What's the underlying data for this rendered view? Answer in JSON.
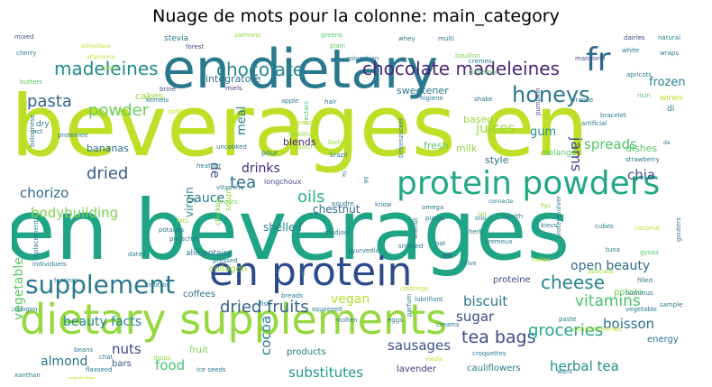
{
  "chart_data": {
    "type": "wordcloud",
    "title": "Nuage de mots pour la colonne: main_category",
    "words": [
      {
        "text": "beverages en",
        "weight": 100,
        "color": "#bddf26"
      },
      {
        "text": "en beverages",
        "weight": 96,
        "color": "#20a486"
      },
      {
        "text": "en dietary",
        "weight": 62,
        "color": "#2a788e"
      },
      {
        "text": "dietary supplements",
        "weight": 50,
        "color": "#95d840"
      },
      {
        "text": "en protein",
        "weight": 44,
        "color": "#2c4a8c"
      },
      {
        "text": "protein powders",
        "weight": 36,
        "color": "#22a884"
      },
      {
        "text": "fr",
        "weight": 33,
        "color": "#2f6b8e"
      },
      {
        "text": "supplement",
        "weight": 25,
        "color": "#29788e"
      },
      {
        "text": "honeys",
        "weight": 23,
        "color": "#2a778e"
      },
      {
        "text": "chocolate madeleines",
        "weight": 20,
        "color": "#482878"
      },
      {
        "text": "madeleines",
        "weight": 19,
        "color": "#238a8d"
      },
      {
        "text": "chocolate",
        "weight": 18,
        "color": "#24868e"
      },
      {
        "text": "pasta",
        "weight": 17,
        "color": "#33638d"
      },
      {
        "text": "powder",
        "weight": 17,
        "color": "#6ccd5a"
      },
      {
        "text": "dried fruits",
        "weight": 17,
        "color": "#34618d"
      },
      {
        "text": "cheese",
        "weight": 18,
        "color": "#26828e"
      },
      {
        "text": "tea bags",
        "weight": 18,
        "color": "#3e4a89"
      },
      {
        "text": "groceries",
        "weight": 17,
        "color": "#22a884"
      },
      {
        "text": "vitamins",
        "weight": 17,
        "color": "#4ac16d"
      },
      {
        "text": "dried",
        "weight": 16,
        "color": "#38598c"
      },
      {
        "text": "chorizo",
        "weight": 15,
        "color": "#31688e"
      },
      {
        "text": "bodybuilding",
        "weight": 15,
        "color": "#7ad151"
      },
      {
        "text": "oils",
        "weight": 17,
        "color": "#2cb17e"
      },
      {
        "text": "tea",
        "weight": 17,
        "color": "#2f6c8e"
      },
      {
        "text": "jams",
        "weight": 15,
        "color": "#404688"
      },
      {
        "text": "juices",
        "weight": 15,
        "color": "#95d840"
      },
      {
        "text": "spreads",
        "weight": 14,
        "color": "#52c569"
      },
      {
        "text": "chia",
        "weight": 14,
        "color": "#3b528b"
      },
      {
        "text": "cocoa",
        "weight": 14,
        "color": "#287d8e"
      },
      {
        "text": "sausages",
        "weight": 14,
        "color": "#3a548c"
      },
      {
        "text": "substitutes",
        "weight": 14,
        "color": "#1f9a8a"
      },
      {
        "text": "herbal tea",
        "weight": 14,
        "color": "#21918c"
      },
      {
        "text": "biscuit",
        "weight": 14,
        "color": "#2a768e"
      },
      {
        "text": "boisson",
        "weight": 14,
        "color": "#2d718e"
      },
      {
        "text": "open beauty",
        "weight": 14,
        "color": "#2e6e8e"
      },
      {
        "text": "beauty facts",
        "weight": 13,
        "color": "#25858e"
      },
      {
        "text": "vegetable",
        "weight": 13,
        "color": "#5ec962"
      },
      {
        "text": "sauce",
        "weight": 13,
        "color": "#2a788e"
      },
      {
        "text": "drinks",
        "weight": 13,
        "color": "#472c7a"
      },
      {
        "text": "almond",
        "weight": 13,
        "color": "#2e6f8e"
      },
      {
        "text": "food",
        "weight": 14,
        "color": "#4ac16d"
      },
      {
        "text": "nuts",
        "weight": 14,
        "color": "#3e4989"
      },
      {
        "text": "sugar",
        "weight": 14,
        "color": "#3d4d8a"
      },
      {
        "text": "vegan",
        "weight": 13,
        "color": "#b5de2b"
      },
      {
        "text": "de",
        "weight": 14,
        "color": "#3b528b"
      },
      {
        "text": "meal",
        "weight": 13,
        "color": "#2a788e"
      },
      {
        "text": "gum",
        "weight": 12,
        "color": "#21918c"
      },
      {
        "text": "frozen",
        "weight": 12,
        "color": "#25848e"
      },
      {
        "text": "virgin",
        "weight": 12,
        "color": "#26828e"
      },
      {
        "text": "shelled",
        "weight": 12,
        "color": "#26828e"
      },
      {
        "text": "chestnut",
        "weight": 11,
        "color": "#31688e"
      },
      {
        "text": "blends",
        "weight": 11,
        "color": "#481f70"
      },
      {
        "text": "integratore",
        "weight": 11,
        "color": "#2d708e"
      },
      {
        "text": "sweetener",
        "weight": 11,
        "color": "#2c728e"
      },
      {
        "text": "bananas",
        "weight": 11,
        "color": "#2d708e"
      },
      {
        "text": "cakes",
        "weight": 11,
        "color": "#95d840"
      },
      {
        "text": "milk",
        "weight": 11,
        "color": "#95d840"
      },
      {
        "text": "fresh",
        "weight": 11,
        "color": "#5ec962"
      },
      {
        "text": "based",
        "weight": 11,
        "color": "#95d840"
      },
      {
        "text": "style",
        "weight": 11,
        "color": "#2d708e"
      },
      {
        "text": "dishes",
        "weight": 11,
        "color": "#52c569"
      },
      {
        "text": "proteine",
        "weight": 10,
        "color": "#3e4989"
      },
      {
        "text": "potato",
        "weight": 10,
        "color": "#6ccd5a"
      },
      {
        "text": "coffees",
        "weight": 10,
        "color": "#2d708e"
      },
      {
        "text": "collagen",
        "weight": 10,
        "color": "#95d840"
      },
      {
        "text": "energy",
        "weight": 10,
        "color": "#2c728e"
      },
      {
        "text": "products",
        "weight": 10,
        "color": "#2c728e"
      },
      {
        "text": "fruit",
        "weight": 10,
        "color": "#7ad151"
      },
      {
        "text": "bars",
        "weight": 10,
        "color": "#3b528b"
      },
      {
        "text": "lavender",
        "weight": 10,
        "color": "#463480"
      },
      {
        "text": "cauliflowers",
        "weight": 10,
        "color": "#2a788e"
      },
      {
        "text": "melange",
        "weight": 9,
        "color": "#5ec962"
      },
      {
        "text": "alimentaire",
        "weight": 9,
        "color": "#2a788e"
      },
      {
        "text": "wines",
        "weight": 9,
        "color": "#bddf26"
      },
      {
        "text": "dry",
        "weight": 9,
        "color": "#2d708e"
      },
      {
        "text": "di",
        "weight": 9,
        "color": "#2a788e"
      },
      {
        "text": "stevia",
        "weight": 9,
        "color": "#2a788e"
      },
      {
        "text": "soups",
        "weight": 9,
        "color": "#95d840"
      },
      {
        "text": "longchoux",
        "weight": 8,
        "color": "#404688"
      },
      {
        "text": "chicken",
        "weight": 8,
        "color": "#7ad151"
      },
      {
        "text": "pour",
        "weight": 8,
        "color": "#2c728e"
      },
      {
        "text": "es",
        "weight": 8,
        "color": "#2a788e"
      },
      {
        "text": "strawberry",
        "weight": 7,
        "color": "#2a788e"
      },
      {
        "text": "mixed",
        "weight": 7,
        "color": "#3e4989"
      },
      {
        "text": "cherry",
        "weight": 7,
        "color": "#2a788e"
      },
      {
        "text": "natural",
        "weight": 7,
        "color": "#25848e"
      },
      {
        "text": "dairies",
        "weight": 7,
        "color": "#3e4989"
      },
      {
        "text": "white",
        "weight": 7,
        "color": "#2a788e"
      },
      {
        "text": "mandorle",
        "weight": 7,
        "color": "#3e4989"
      },
      {
        "text": "salmons",
        "weight": 7,
        "color": "#95d840"
      },
      {
        "text": "greens",
        "weight": 7,
        "color": "#52c569"
      },
      {
        "text": "whey",
        "weight": 7,
        "color": "#2c728e"
      },
      {
        "text": "multi",
        "weight": 7,
        "color": "#2a788e"
      },
      {
        "text": "plain",
        "weight": 7,
        "color": "#5ec962"
      },
      {
        "text": "colombian",
        "weight": 7,
        "color": "#2a788e"
      },
      {
        "text": "bouillon",
        "weight": 7,
        "color": "#7ad151"
      },
      {
        "text": "cremes",
        "weight": 7,
        "color": "#2a788e"
      },
      {
        "text": "cinnamon",
        "weight": 7,
        "color": "#52c569"
      },
      {
        "text": "apricots",
        "weight": 7,
        "color": "#2a788e"
      },
      {
        "text": "wraps",
        "weight": 7,
        "color": "#2a788e"
      },
      {
        "text": "ricin",
        "weight": 7,
        "color": "#52c569"
      },
      {
        "text": "bracelet",
        "weight": 7,
        "color": "#2a788e"
      },
      {
        "text": "artificial",
        "weight": 7,
        "color": "#2a788e"
      },
      {
        "text": "france",
        "weight": 7,
        "color": "#2c728e"
      },
      {
        "text": "alimentare",
        "weight": 6,
        "color": "#bddf26"
      },
      {
        "text": "costa",
        "weight": 7,
        "color": "#95d840"
      },
      {
        "text": "forest",
        "weight": 7,
        "color": "#3e4989"
      },
      {
        "text": "miels",
        "weight": 7,
        "color": "#3e4989"
      },
      {
        "text": "butters",
        "weight": 7,
        "color": "#5ec962"
      },
      {
        "text": "brine",
        "weight": 7,
        "color": "#3e4989"
      },
      {
        "text": "kernels",
        "weight": 7,
        "color": "#2a788e"
      },
      {
        "text": "tortilla",
        "weight": 7,
        "color": "#d2e21b"
      },
      {
        "text": "apple",
        "weight": 7,
        "color": "#2a788e"
      },
      {
        "text": "nectars",
        "weight": 7,
        "color": "#52c569"
      },
      {
        "text": "hair",
        "weight": 7,
        "color": "#2c728e"
      },
      {
        "text": "higiene",
        "weight": 7,
        "color": "#2a788e"
      },
      {
        "text": "shake",
        "weight": 7,
        "color": "#2c728e"
      },
      {
        "text": "pumpkin",
        "weight": 7,
        "color": "#3e4989"
      },
      {
        "text": "birkenzucker",
        "weight": 7,
        "color": "#2a788e"
      },
      {
        "text": "bieta",
        "weight": 7,
        "color": "#95d840"
      },
      {
        "text": "brazil",
        "weight": 7,
        "color": "#2a788e"
      },
      {
        "text": "peanut",
        "weight": 7,
        "color": "#bddf26"
      },
      {
        "text": "healthy",
        "weight": 7,
        "color": "#95d840"
      },
      {
        "text": "dolci",
        "weight": 7,
        "color": "#95d840"
      },
      {
        "text": "uncooked",
        "weight": 7,
        "color": "#2a788e"
      },
      {
        "text": "heather",
        "weight": 7,
        "color": "#2a788e"
      },
      {
        "text": "vitamina",
        "weight": 7,
        "color": "#2c728e"
      },
      {
        "text": "meats",
        "weight": 7,
        "color": "#7ad151"
      },
      {
        "text": "fats",
        "weight": 7,
        "color": "#95d840"
      },
      {
        "text": "potages",
        "weight": 7,
        "color": "#2a788e"
      },
      {
        "text": "pistaches",
        "weight": 7,
        "color": "#2a788e"
      },
      {
        "text": "dates",
        "weight": 7,
        "color": "#2a788e"
      },
      {
        "text": "medjool",
        "weight": 7,
        "color": "#2a788e"
      },
      {
        "text": "poudre",
        "weight": 7,
        "color": "#2a788e"
      },
      {
        "text": "know",
        "weight": 7,
        "color": "#2c728e"
      },
      {
        "text": "omega",
        "weight": 7,
        "color": "#2a788e"
      },
      {
        "text": "pizzas",
        "weight": 7,
        "color": "#2a788e"
      },
      {
        "text": "olio",
        "weight": 7,
        "color": "#2a788e"
      },
      {
        "text": "health",
        "weight": 7,
        "color": "#2a788e"
      },
      {
        "text": "kievs",
        "weight": 7,
        "color": "#2a788e"
      },
      {
        "text": "cubes",
        "weight": 7,
        "color": "#2a788e"
      },
      {
        "text": "coconut",
        "weight": 7,
        "color": "#bddf26"
      },
      {
        "text": "gouters",
        "weight": 7,
        "color": "#2a788e"
      },
      {
        "text": "gyoza",
        "weight": 7,
        "color": "#52c569"
      },
      {
        "text": "tuna",
        "weight": 7,
        "color": "#2a788e"
      },
      {
        "text": "herb",
        "weight": 7,
        "color": "#2a788e"
      },
      {
        "text": "cremeux",
        "weight": 7,
        "color": "#2a788e"
      },
      {
        "text": "roll",
        "weight": 7,
        "color": "#3e4989"
      },
      {
        "text": "smoked",
        "weight": 7,
        "color": "#2a788e"
      },
      {
        "text": "walnut",
        "weight": 7,
        "color": "#2a788e"
      },
      {
        "text": "ayurvedic",
        "weight": 7,
        "color": "#2a788e"
      },
      {
        "text": "olive",
        "weight": 7,
        "color": "#2a788e"
      },
      {
        "text": "oat",
        "weight": 7,
        "color": "#2a788e"
      },
      {
        "text": "huiles",
        "weight": 7,
        "color": "#bddf26"
      },
      {
        "text": "avocado",
        "weight": 7,
        "color": "#95d840"
      },
      {
        "text": "filled",
        "weight": 7,
        "color": "#2a788e"
      },
      {
        "text": "hummus",
        "weight": 7,
        "color": "#2a788e"
      },
      {
        "text": "proteinpulver",
        "weight": 7,
        "color": "#2a788e"
      },
      {
        "text": "replacement",
        "weight": 7,
        "color": "#2a788e"
      },
      {
        "text": "individuels",
        "weight": 7,
        "color": "#2a788e"
      },
      {
        "text": "pressed",
        "weight": 7,
        "color": "#2a788e"
      },
      {
        "text": "feminin",
        "weight": 7,
        "color": "#2a788e"
      },
      {
        "text": "collogen",
        "weight": 7,
        "color": "#2a788e"
      },
      {
        "text": "risottos",
        "weight": 7,
        "color": "#2a788e"
      },
      {
        "text": "fish",
        "weight": 7,
        "color": "#2a788e"
      },
      {
        "text": "breads",
        "weight": 7,
        "color": "#2a788e"
      },
      {
        "text": "squeezed",
        "weight": 7,
        "color": "#2a788e"
      },
      {
        "text": "molten",
        "weight": 7,
        "color": "#2a788e"
      },
      {
        "text": "eggs",
        "weight": 7,
        "color": "#2a788e"
      },
      {
        "text": "creams",
        "weight": 7,
        "color": "#2a788e"
      },
      {
        "text": "colorings",
        "weight": 7,
        "color": "#bddf26"
      },
      {
        "text": "lubrifiant",
        "weight": 7,
        "color": "#2a788e"
      },
      {
        "text": "parfum",
        "weight": 7,
        "color": "#2a788e"
      },
      {
        "text": "confectioneries",
        "weight": 7,
        "color": "#bddf26"
      },
      {
        "text": "paste",
        "weight": 7,
        "color": "#2a788e"
      },
      {
        "text": "sample",
        "weight": 7,
        "color": "#2a788e"
      },
      {
        "text": "vegetable",
        "weight": 7,
        "color": "#2a788e"
      },
      {
        "text": "croquettes",
        "weight": 7,
        "color": "#2a788e"
      },
      {
        "text": "want",
        "weight": 7,
        "color": "#2a788e"
      },
      {
        "text": "beans",
        "weight": 7,
        "color": "#2a788e"
      },
      {
        "text": "chat",
        "weight": 7,
        "color": "#2a788e"
      },
      {
        "text": "drops",
        "weight": 7,
        "color": "#95d840"
      },
      {
        "text": "ice seeds",
        "weight": 7,
        "color": "#2a788e"
      },
      {
        "text": "flaxseed",
        "weight": 7,
        "color": "#2a788e"
      },
      {
        "text": "peptides",
        "weight": 7,
        "color": "#bddf26"
      },
      {
        "text": "xanthan",
        "weight": 7,
        "color": "#2a788e"
      },
      {
        "text": "maultaschen",
        "weight": 7,
        "color": "#bddf26"
      },
      {
        "text": "mct",
        "weight": 7,
        "color": "#2a788e"
      },
      {
        "text": "bolognese",
        "weight": 7,
        "color": "#2a788e"
      },
      {
        "text": "proteinee",
        "weight": 7,
        "color": "#2a788e"
      },
      {
        "text": "vitaminico",
        "weight": 6,
        "color": "#bddf26"
      },
      {
        "text": "connecte",
        "weight": 6,
        "color": "#2a788e"
      },
      {
        "text": "hot",
        "weight": 6,
        "color": "#95d840"
      },
      {
        "text": "figs",
        "weight": 6,
        "color": "#95d840"
      },
      {
        "text": "b6",
        "weight": 6,
        "color": "#2a788e"
      },
      {
        "text": "te",
        "weight": 6,
        "color": "#2a788e"
      },
      {
        "text": "da",
        "weight": 6,
        "color": "#2a788e"
      },
      {
        "text": "media",
        "weight": 6,
        "color": "#bddf26"
      }
    ]
  }
}
